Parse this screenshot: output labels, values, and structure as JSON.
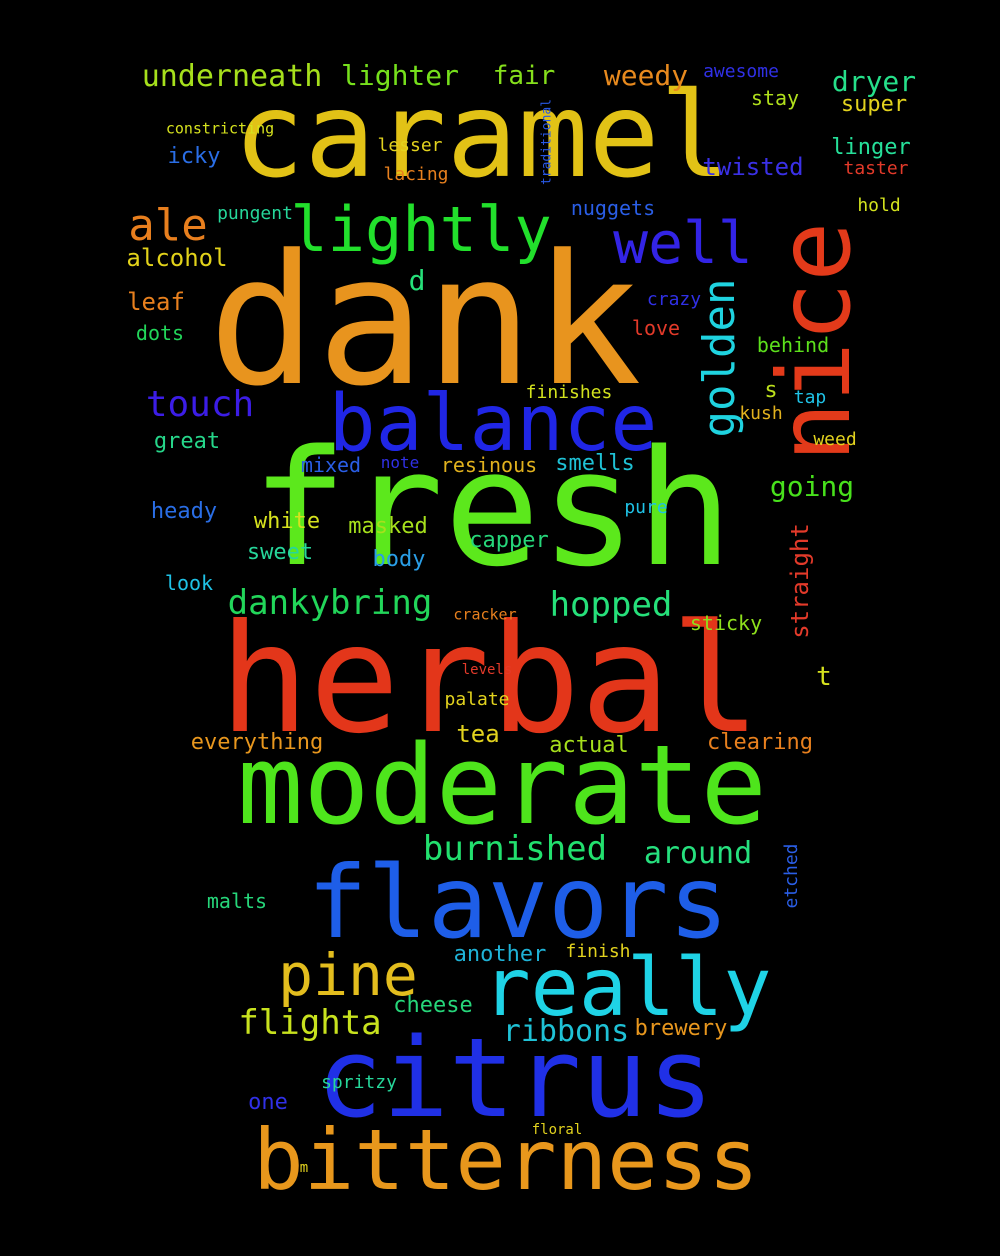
{
  "background": "#000000",
  "words": [
    {
      "text": "caramel",
      "color": "#e2c216"
    },
    {
      "text": "dank",
      "color": "#e8941e"
    },
    {
      "text": "fresh",
      "color": "#5ce81c"
    },
    {
      "text": "herbal",
      "color": "#e3361a"
    },
    {
      "text": "moderate",
      "color": "#4ee51c"
    },
    {
      "text": "flavors",
      "color": "#1e5ee8"
    },
    {
      "text": "citrus",
      "color": "#2030e6"
    },
    {
      "text": "bitterness",
      "color": "#e8971c"
    },
    {
      "text": "balance",
      "color": "#2026e6"
    },
    {
      "text": "nice",
      "color": "#e33a1a"
    },
    {
      "text": "really",
      "color": "#1fd3e6"
    },
    {
      "text": "lightly",
      "color": "#22e02c"
    },
    {
      "text": "well",
      "color": "#3324e6"
    },
    {
      "text": "pine",
      "color": "#e3bd1e"
    },
    {
      "text": "golden",
      "color": "#1fd3e0"
    },
    {
      "text": "ale",
      "color": "#e87f1e"
    },
    {
      "text": "touch",
      "color": "#3c1de6"
    },
    {
      "text": "dankybring",
      "color": "#22d65a"
    },
    {
      "text": "hopped",
      "color": "#26e07a"
    },
    {
      "text": "burnished",
      "color": "#22e06e"
    },
    {
      "text": "flighta",
      "color": "#c8e21e"
    },
    {
      "text": "ribbons",
      "color": "#1fc2d6"
    },
    {
      "text": "around",
      "color": "#26e07e"
    },
    {
      "text": "underneath",
      "color": "#a6e01c"
    },
    {
      "text": "lighter",
      "color": "#76e01c"
    },
    {
      "text": "fair",
      "color": "#86e01c"
    },
    {
      "text": "weedy",
      "color": "#e88a1e"
    },
    {
      "text": "dryer",
      "color": "#26e08a"
    },
    {
      "text": "going",
      "color": "#48e01c"
    },
    {
      "text": "straight",
      "color": "#e33a2a"
    },
    {
      "text": "alcohol",
      "color": "#e2d21a"
    },
    {
      "text": "leaf",
      "color": "#e8801e"
    },
    {
      "text": "d",
      "color": "#26e07a"
    },
    {
      "text": "awesome",
      "color": "#3030e6"
    },
    {
      "text": "stay",
      "color": "#b0e01c"
    },
    {
      "text": "super",
      "color": "#e2d21e"
    },
    {
      "text": "linger",
      "color": "#26e09a"
    },
    {
      "text": "taster",
      "color": "#e33a2a"
    },
    {
      "text": "hold",
      "color": "#d2e21e"
    },
    {
      "text": "constricting",
      "color": "#d6e21e"
    },
    {
      "text": "traditional",
      "color": "#2858e6"
    },
    {
      "text": "lesser",
      "color": "#e2d21e"
    },
    {
      "text": "lacing",
      "color": "#e8801e"
    },
    {
      "text": "icky",
      "color": "#2a6ee6"
    },
    {
      "text": "twisted",
      "color": "#3a30e6"
    },
    {
      "text": "nuggets",
      "color": "#2a5ee6"
    },
    {
      "text": "pungent",
      "color": "#26d69a"
    },
    {
      "text": "crazy",
      "color": "#3030e6"
    },
    {
      "text": "love",
      "color": "#e33a2a"
    },
    {
      "text": "behind",
      "color": "#5ce01c"
    },
    {
      "text": "dots",
      "color": "#22d65a"
    },
    {
      "text": "s",
      "color": "#bce01c"
    },
    {
      "text": "tap",
      "color": "#1fc2e6"
    },
    {
      "text": "finishes",
      "color": "#d2e21e"
    },
    {
      "text": "kush",
      "color": "#e2b21e"
    },
    {
      "text": "great",
      "color": "#26d68a"
    },
    {
      "text": "weed",
      "color": "#e2d21e"
    },
    {
      "text": "mixed",
      "color": "#2a5ee6"
    },
    {
      "text": "note",
      "color": "#3030e6"
    },
    {
      "text": "resinous",
      "color": "#e2b21e"
    },
    {
      "text": "smells",
      "color": "#1fc2d6"
    },
    {
      "text": "heady",
      "color": "#2a6ee6"
    },
    {
      "text": "white",
      "color": "#d6e21e"
    },
    {
      "text": "masked",
      "color": "#a6e01c"
    },
    {
      "text": "pure",
      "color": "#1fc2e6"
    },
    {
      "text": "sweet",
      "color": "#26d69a"
    },
    {
      "text": "body",
      "color": "#2a9ee6"
    },
    {
      "text": "capper",
      "color": "#26d67a"
    },
    {
      "text": "look",
      "color": "#1fc2e6"
    },
    {
      "text": "cracker",
      "color": "#e8801e"
    },
    {
      "text": "sticky",
      "color": "#8ee01c"
    },
    {
      "text": "levels",
      "color": "#e33a2a"
    },
    {
      "text": "t",
      "color": "#d6e21e"
    },
    {
      "text": "palate",
      "color": "#e2d21e"
    },
    {
      "text": "tea",
      "color": "#e2d21e"
    },
    {
      "text": "everything",
      "color": "#e8971e"
    },
    {
      "text": "actual",
      "color": "#a6e01c"
    },
    {
      "text": "clearing",
      "color": "#e8801e"
    },
    {
      "text": "etched",
      "color": "#2a5ee6"
    },
    {
      "text": "malts",
      "color": "#26d67a"
    },
    {
      "text": "another",
      "color": "#1fb2d6"
    },
    {
      "text": "finish",
      "color": "#e2d21e"
    },
    {
      "text": "cheese",
      "color": "#26d67a"
    },
    {
      "text": "brewery",
      "color": "#e8971e"
    },
    {
      "text": "one",
      "color": "#3030e6"
    },
    {
      "text": "spritzy",
      "color": "#26d69a"
    },
    {
      "text": "floral",
      "color": "#e2d21e"
    },
    {
      "text": "m",
      "color": "#e2d21e"
    }
  ]
}
